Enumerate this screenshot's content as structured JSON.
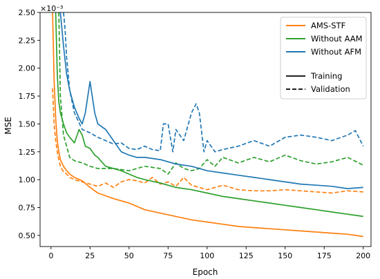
{
  "chart_data": {
    "type": "line",
    "title": "",
    "xlabel": "Epoch",
    "ylabel": "MSE",
    "y_scale_label": "×10⁻³",
    "y_scale_factor": 0.001,
    "xlim": [
      -7,
      205
    ],
    "ylim": [
      0.4,
      2.5
    ],
    "x_ticks": [
      0,
      25,
      50,
      75,
      100,
      125,
      150,
      175,
      200
    ],
    "y_ticks": [
      0.5,
      0.75,
      1.0,
      1.25,
      1.5,
      1.75,
      2.0,
      2.25,
      2.5
    ],
    "y_tick_labels": [
      "0.50",
      "0.75",
      "1.00",
      "1.25",
      "1.50",
      "1.75",
      "2.00",
      "2.25",
      "2.50"
    ],
    "grid": false,
    "legend_placement": "top-right",
    "legend": {
      "models": [
        {
          "name": "AMS-STF",
          "color": "#ff7f0e"
        },
        {
          "name": "Without AAM",
          "color": "#2ca02c"
        },
        {
          "name": "Without AFM",
          "color": "#1f77b4"
        }
      ],
      "styles": [
        {
          "name": "Training",
          "dash": "solid"
        },
        {
          "name": "Validation",
          "dash": "dashed"
        }
      ]
    },
    "series": [
      {
        "model": "AMS-STF",
        "split": "Training",
        "color": "#ff7f0e",
        "dash": "solid",
        "x": [
          1,
          2,
          3,
          4,
          5,
          6,
          8,
          10,
          12,
          15,
          20,
          25,
          30,
          40,
          50,
          60,
          70,
          80,
          90,
          100,
          110,
          120,
          130,
          140,
          150,
          160,
          170,
          180,
          190,
          200
        ],
        "y": [
          2.5,
          1.9,
          1.55,
          1.35,
          1.25,
          1.18,
          1.12,
          1.08,
          1.05,
          1.02,
          0.99,
          0.93,
          0.88,
          0.83,
          0.79,
          0.73,
          0.7,
          0.67,
          0.64,
          0.62,
          0.6,
          0.58,
          0.57,
          0.56,
          0.55,
          0.54,
          0.53,
          0.52,
          0.51,
          0.49
        ]
      },
      {
        "model": "AMS-STF",
        "split": "Validation",
        "color": "#ff7f0e",
        "dash": "dashed",
        "x": [
          1,
          2,
          3,
          4,
          5,
          6,
          8,
          10,
          12,
          15,
          20,
          25,
          30,
          35,
          40,
          45,
          50,
          55,
          60,
          65,
          70,
          75,
          80,
          85,
          90,
          95,
          100,
          110,
          120,
          130,
          140,
          150,
          160,
          170,
          180,
          190,
          200
        ],
        "y": [
          1.82,
          1.5,
          1.35,
          1.25,
          1.18,
          1.12,
          1.07,
          1.05,
          1.02,
          1.0,
          0.98,
          0.96,
          0.94,
          0.97,
          0.93,
          0.98,
          1.0,
          0.99,
          0.97,
          1.02,
          0.96,
          0.98,
          0.94,
          1.02,
          0.95,
          0.93,
          0.91,
          0.95,
          0.91,
          0.9,
          0.9,
          0.91,
          0.9,
          0.89,
          0.88,
          0.9,
          0.89
        ]
      },
      {
        "model": "Without AAM",
        "split": "Training",
        "color": "#2ca02c",
        "dash": "solid",
        "x": [
          3,
          4,
          5,
          6,
          8,
          10,
          12,
          15,
          18,
          20,
          22,
          25,
          28,
          30,
          35,
          40,
          45,
          50,
          55,
          60,
          70,
          80,
          90,
          100,
          110,
          120,
          130,
          140,
          150,
          160,
          170,
          180,
          190,
          200
        ],
        "y": [
          2.5,
          1.95,
          1.7,
          1.6,
          1.5,
          1.42,
          1.38,
          1.33,
          1.45,
          1.4,
          1.3,
          1.28,
          1.22,
          1.2,
          1.12,
          1.1,
          1.08,
          1.05,
          1.02,
          1.0,
          0.97,
          0.93,
          0.91,
          0.88,
          0.85,
          0.83,
          0.81,
          0.79,
          0.77,
          0.75,
          0.73,
          0.71,
          0.69,
          0.67
        ]
      },
      {
        "model": "Without AAM",
        "split": "Validation",
        "color": "#2ca02c",
        "dash": "dashed",
        "x": [
          5,
          6,
          8,
          10,
          12,
          15,
          20,
          25,
          30,
          40,
          50,
          60,
          70,
          75,
          80,
          85,
          90,
          95,
          100,
          105,
          110,
          120,
          130,
          140,
          150,
          160,
          170,
          180,
          190,
          200
        ],
        "y": [
          2.5,
          1.75,
          1.4,
          1.3,
          1.2,
          1.17,
          1.15,
          1.12,
          1.1,
          1.1,
          1.08,
          1.12,
          1.1,
          1.05,
          1.15,
          1.1,
          1.08,
          1.1,
          1.18,
          1.12,
          1.2,
          1.15,
          1.2,
          1.16,
          1.22,
          1.17,
          1.14,
          1.16,
          1.2,
          1.13
        ]
      },
      {
        "model": "Without AFM",
        "split": "Training",
        "color": "#1f77b4",
        "dash": "solid",
        "x": [
          6,
          8,
          10,
          12,
          15,
          18,
          20,
          22,
          25,
          28,
          30,
          35,
          40,
          45,
          50,
          55,
          60,
          70,
          80,
          90,
          100,
          110,
          120,
          130,
          140,
          150,
          160,
          170,
          180,
          190,
          200
        ],
        "y": [
          2.5,
          2.2,
          1.95,
          1.8,
          1.65,
          1.55,
          1.5,
          1.6,
          1.88,
          1.6,
          1.5,
          1.45,
          1.35,
          1.25,
          1.22,
          1.2,
          1.2,
          1.18,
          1.14,
          1.12,
          1.08,
          1.06,
          1.04,
          1.02,
          1.0,
          0.98,
          0.96,
          0.95,
          0.94,
          0.92,
          0.93
        ]
      },
      {
        "model": "Without AFM",
        "split": "Validation",
        "color": "#1f77b4",
        "dash": "dashed",
        "x": [
          8,
          9,
          10,
          12,
          15,
          20,
          25,
          30,
          35,
          40,
          45,
          50,
          55,
          60,
          65,
          70,
          72,
          75,
          78,
          80,
          85,
          90,
          93,
          95,
          98,
          100,
          105,
          110,
          120,
          130,
          140,
          150,
          160,
          170,
          180,
          190,
          195,
          200
        ],
        "y": [
          2.5,
          2.35,
          2.1,
          1.8,
          1.6,
          1.45,
          1.42,
          1.38,
          1.35,
          1.32,
          1.33,
          1.28,
          1.27,
          1.3,
          1.27,
          1.26,
          1.5,
          1.5,
          1.25,
          1.45,
          1.35,
          1.6,
          1.68,
          1.6,
          1.25,
          1.35,
          1.25,
          1.27,
          1.3,
          1.35,
          1.3,
          1.38,
          1.4,
          1.38,
          1.35,
          1.4,
          1.44,
          1.3
        ]
      }
    ]
  }
}
